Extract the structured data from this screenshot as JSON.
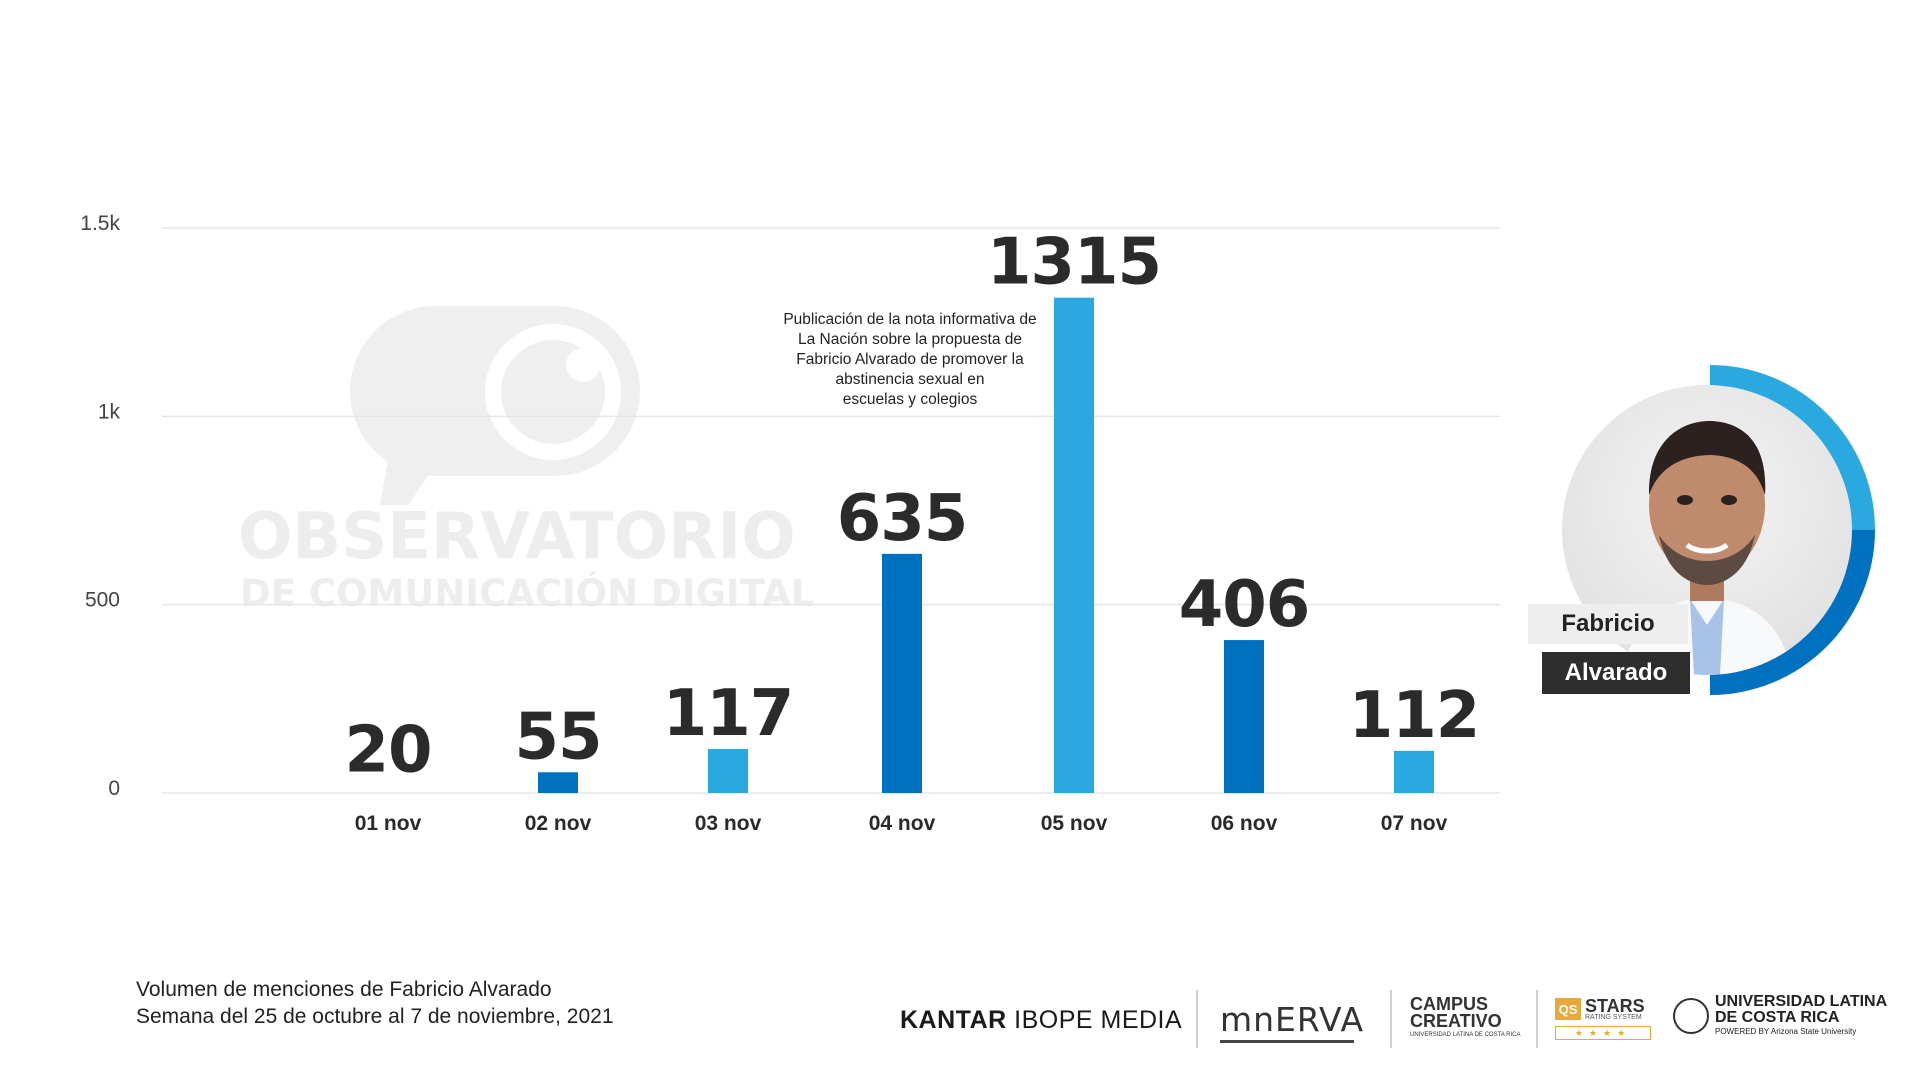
{
  "chart_data": {
    "type": "bar",
    "categories": [
      "01 nov",
      "02 nov",
      "03 nov",
      "04 nov",
      "05 nov",
      "06 nov",
      "07 nov"
    ],
    "values": [
      20,
      55,
      117,
      635,
      1315,
      406,
      112
    ],
    "value_labels": [
      "20",
      "55",
      "117",
      "635",
      "1315",
      "406",
      "112"
    ],
    "bar_colors": [
      "#2aa8e0",
      "#0070c0",
      "#2aa8e0",
      "#0070c0",
      "#2aa8e0",
      "#0070c0",
      "#2aa8e0"
    ],
    "ylim": [
      0,
      1500
    ],
    "yticks": [
      0,
      500,
      1000,
      1500
    ],
    "ytick_labels": [
      "0",
      "500",
      "1k",
      "1.5k"
    ],
    "grid": true,
    "title": "",
    "xlabel": "",
    "ylabel": ""
  },
  "annotation": {
    "text": "Publicación de la nota informativa de\nLa Nación sobre la propuesta de\nFabricio Alvarado de promover la\nabstinencia sexual en\nescuelas y colegios"
  },
  "watermark": {
    "line1": "OBSERVATORIO",
    "line2": "DE COMUNICACIÓN DIGITAL"
  },
  "profile": {
    "first_name": "Fabricio",
    "last_name": "Alvarado",
    "ring_colors": [
      "#2aa8e0",
      "#0070c0"
    ]
  },
  "caption": {
    "line1": "Volumen de menciones de Fabricio Alvarado",
    "line2": "Semana del 25 de octubre al 7 de noviembre, 2021"
  },
  "logos": {
    "kantar_bold": "KANTAR",
    "kantar_rest": " IBOPE MEDIA",
    "minerva": "mnERVA",
    "campus_line1": "CAMPUS",
    "campus_line2": "CREATIVO",
    "campus_small": "UNIVERSIDAD LATINA DE COSTA RICA",
    "qs_box": "QS",
    "qs_stars": "STARS",
    "qs_rating": "RATING SYSTEM",
    "qs_bar": "★★★★",
    "ulatina_line1": "UNIVERSIDAD LATINA",
    "ulatina_line2": "DE COSTA RICA",
    "ulatina_small": "POWERED BY Arizona State University"
  }
}
